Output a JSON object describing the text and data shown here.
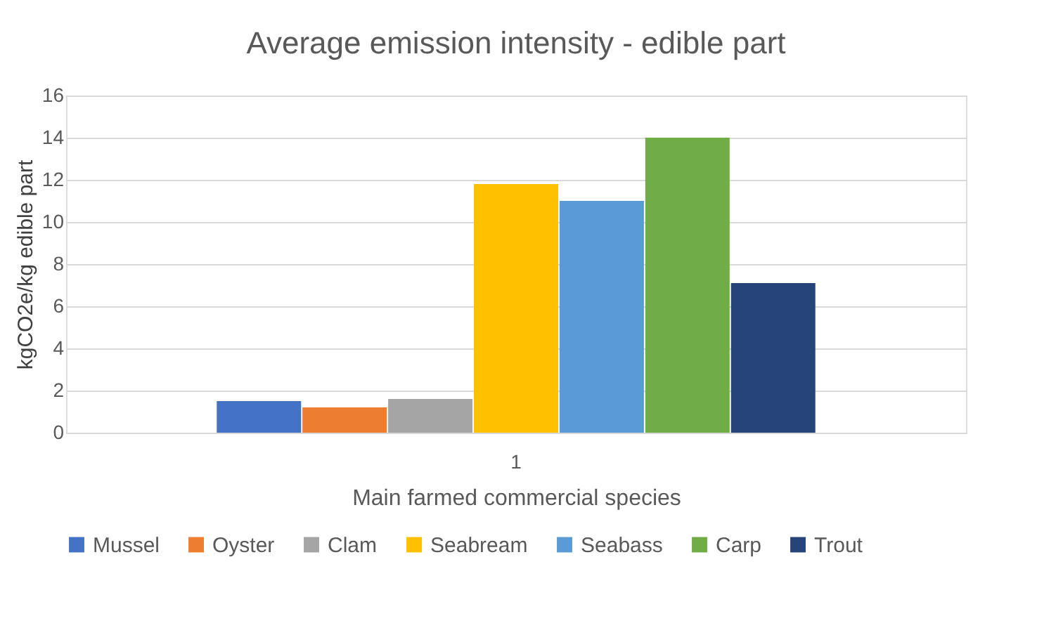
{
  "chart_data": {
    "type": "bar",
    "title": "Average emission intensity - edible part",
    "xlabel": "Main farmed commercial species",
    "ylabel": "kgCO2e/kg edible part",
    "categories": [
      "1"
    ],
    "series": [
      {
        "name": "Mussel",
        "color": "#4472c4",
        "values": [
          1.5
        ]
      },
      {
        "name": "Oyster",
        "color": "#ed7d31",
        "values": [
          1.2
        ]
      },
      {
        "name": "Clam",
        "color": "#a5a5a5",
        "values": [
          1.6
        ]
      },
      {
        "name": "Seabream",
        "color": "#ffc000",
        "values": [
          11.8
        ]
      },
      {
        "name": "Seabass",
        "color": "#5b9bd5",
        "values": [
          11.0
        ]
      },
      {
        "name": "Carp",
        "color": "#70ad47",
        "values": [
          14.0
        ]
      },
      {
        "name": "Trout",
        "color": "#264478",
        "values": [
          7.1
        ]
      }
    ],
    "ylim": [
      0,
      16
    ],
    "yticks": [
      0,
      2,
      4,
      6,
      8,
      10,
      12,
      14,
      16
    ],
    "grid": "y",
    "legend": "bottom"
  }
}
